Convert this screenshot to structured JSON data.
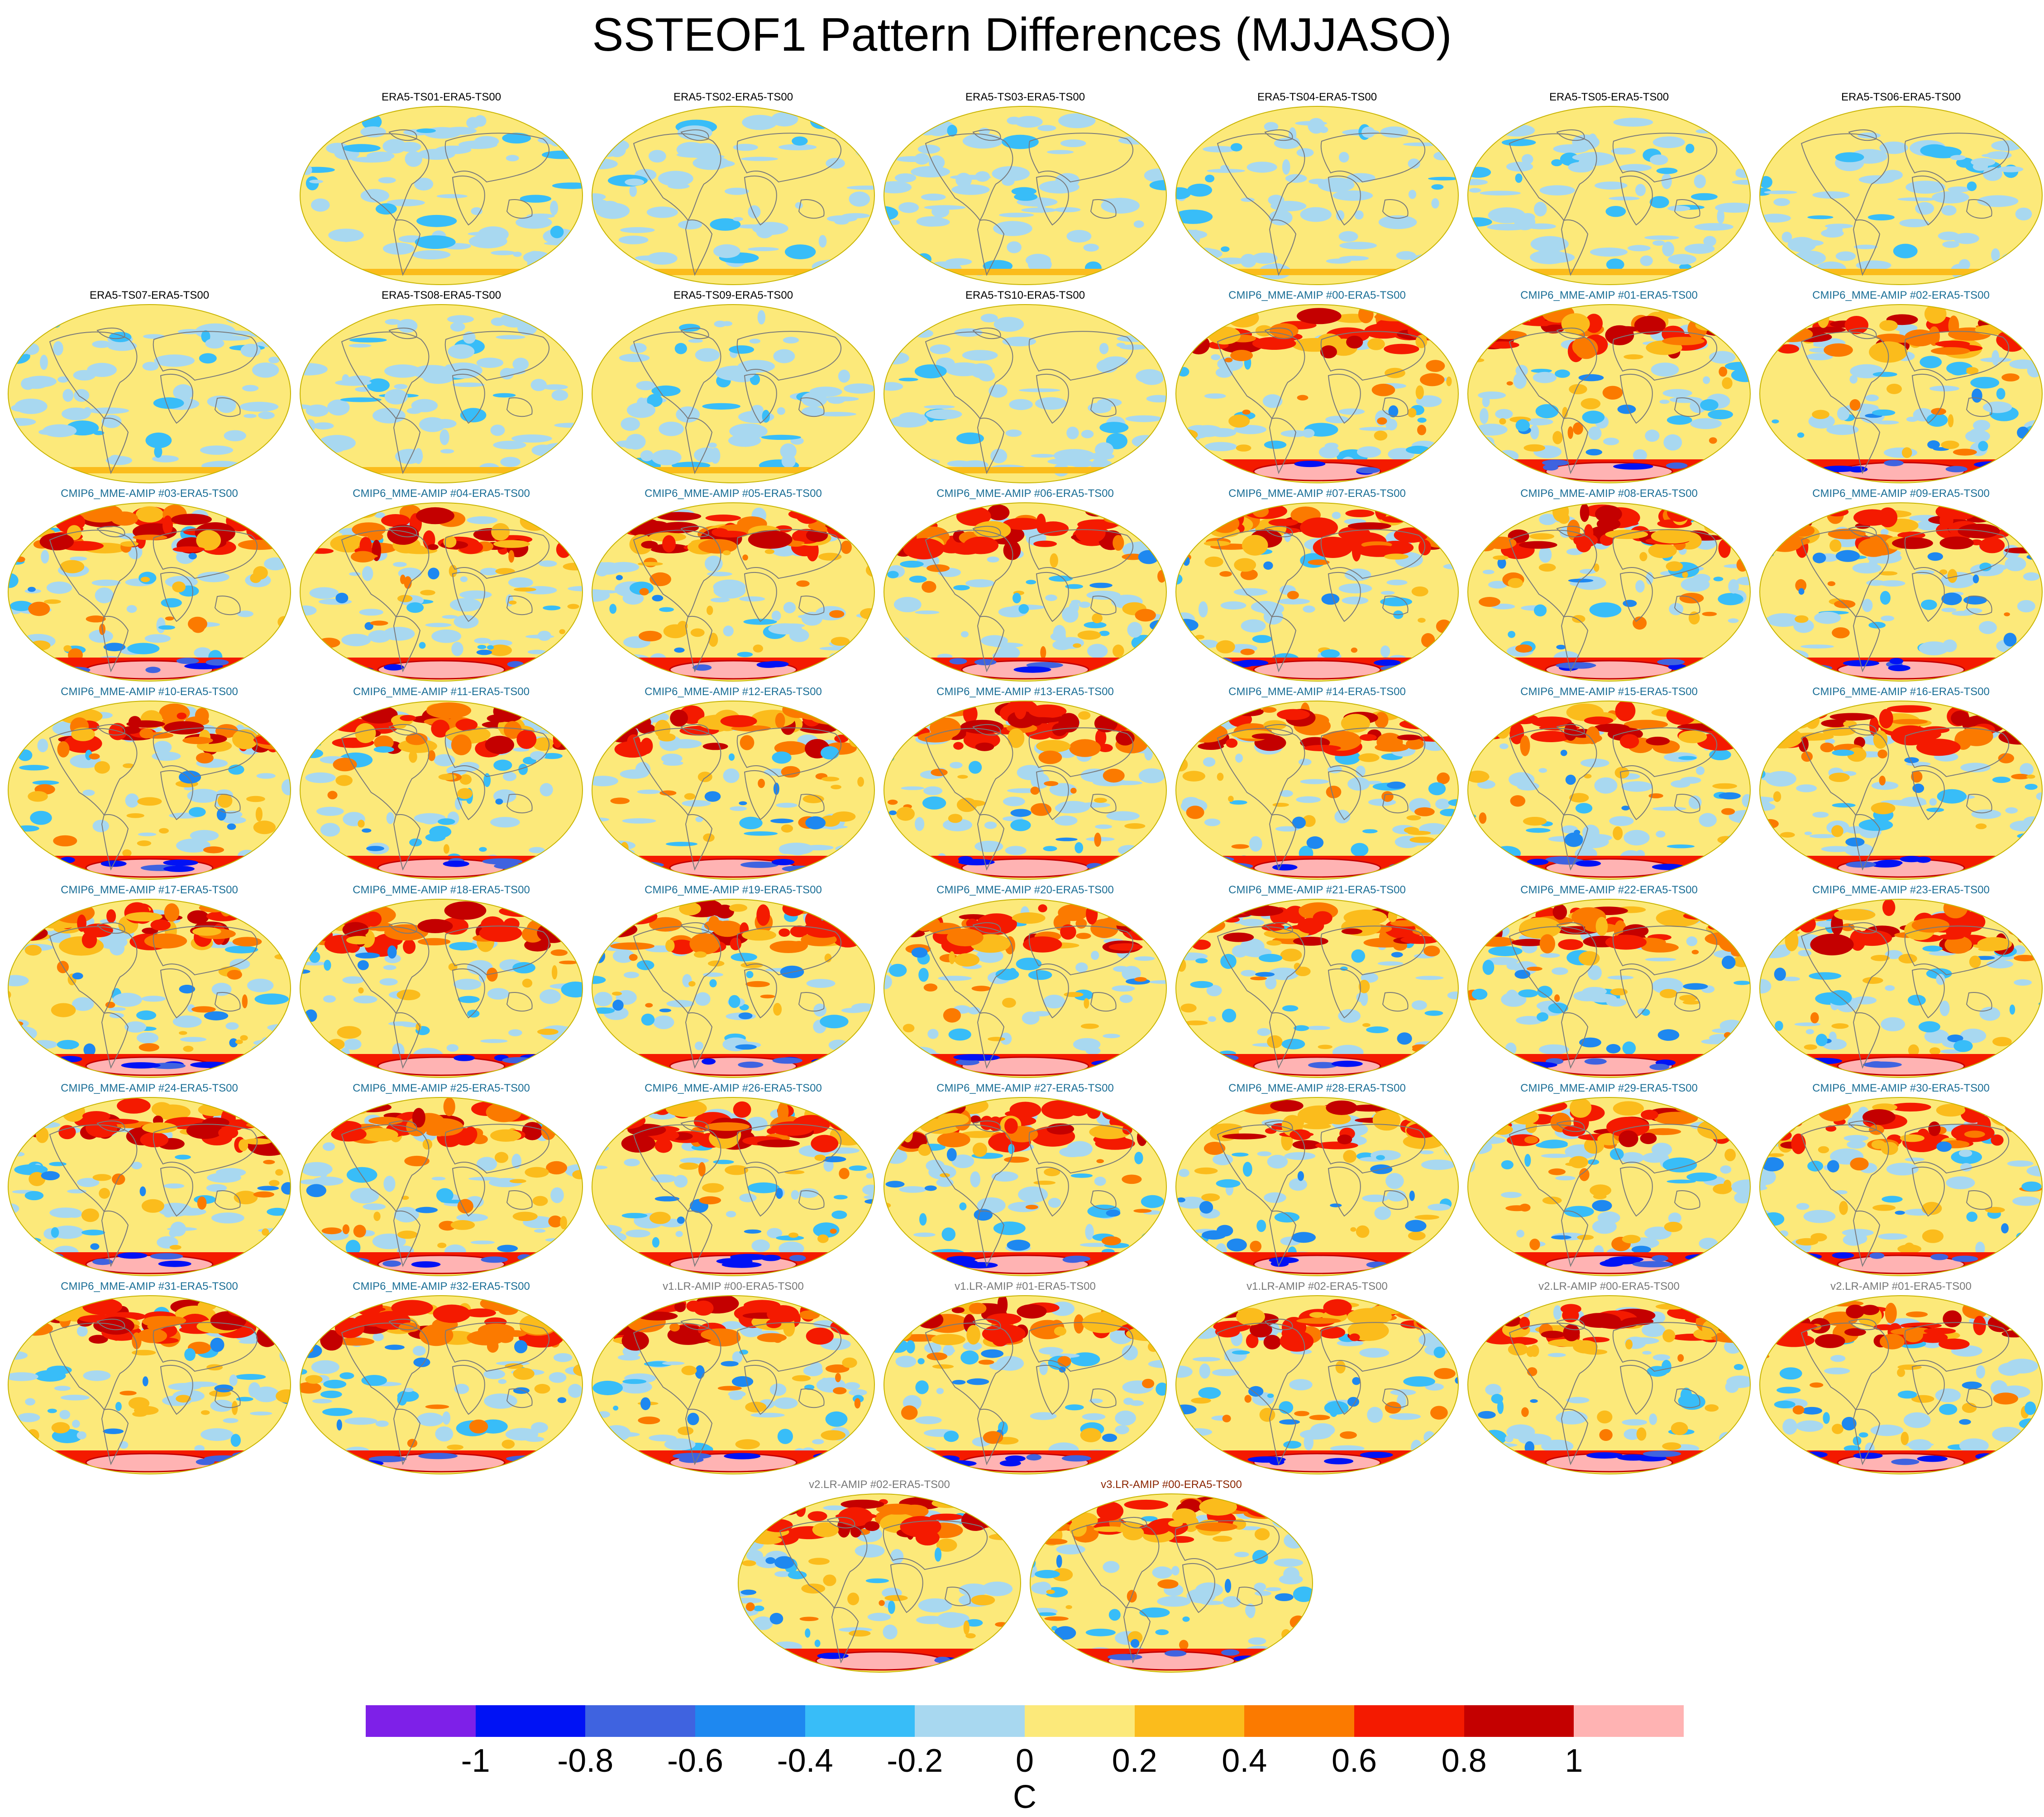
{
  "title": "SSTEOF1 Pattern Differences (MJJASO)",
  "palette": [
    "#7e20e8",
    "#0012f5",
    "#3f63e0",
    "#1e88f0",
    "#38bdf8",
    "#a8d8f0",
    "#fce97a",
    "#fbbc1c",
    "#fb7a00",
    "#f41a00",
    "#c40000",
    "#ffb3b3"
  ],
  "colorbar": {
    "tick_labels": [
      "-1",
      "-0.8",
      "-0.6",
      "-0.4",
      "-0.2",
      "0",
      "0.2",
      "0.4",
      "0.6",
      "0.8",
      "1"
    ],
    "unit": "C"
  },
  "panels": [
    {
      "title": "ERA5-TS01-ERA5-TS00",
      "title_color": "#000000"
    },
    {
      "title": "ERA5-TS02-ERA5-TS00",
      "title_color": "#000000"
    },
    {
      "title": "ERA5-TS03-ERA5-TS00",
      "title_color": "#000000"
    },
    {
      "title": "ERA5-TS04-ERA5-TS00",
      "title_color": "#000000"
    },
    {
      "title": "ERA5-TS05-ERA5-TS00",
      "title_color": "#000000"
    },
    {
      "title": "ERA5-TS06-ERA5-TS00",
      "title_color": "#000000"
    },
    {
      "title": "ERA5-TS07-ERA5-TS00",
      "title_color": "#000000"
    },
    {
      "title": "ERA5-TS08-ERA5-TS00",
      "title_color": "#000000"
    },
    {
      "title": "ERA5-TS09-ERA5-TS00",
      "title_color": "#000000"
    },
    {
      "title": "ERA5-TS10-ERA5-TS00",
      "title_color": "#000000"
    },
    {
      "title": "CMIP6_MME-AMIP  #00-ERA5-TS00",
      "title_color": "#1a6e96"
    },
    {
      "title": "CMIP6_MME-AMIP  #01-ERA5-TS00",
      "title_color": "#1a6e96"
    },
    {
      "title": "CMIP6_MME-AMIP  #02-ERA5-TS00",
      "title_color": "#1a6e96"
    },
    {
      "title": "CMIP6_MME-AMIP  #03-ERA5-TS00",
      "title_color": "#1a6e96"
    },
    {
      "title": "CMIP6_MME-AMIP  #04-ERA5-TS00",
      "title_color": "#1a6e96"
    },
    {
      "title": "CMIP6_MME-AMIP  #05-ERA5-TS00",
      "title_color": "#1a6e96"
    },
    {
      "title": "CMIP6_MME-AMIP  #06-ERA5-TS00",
      "title_color": "#1a6e96"
    },
    {
      "title": "CMIP6_MME-AMIP  #07-ERA5-TS00",
      "title_color": "#1a6e96"
    },
    {
      "title": "CMIP6_MME-AMIP  #08-ERA5-TS00",
      "title_color": "#1a6e96"
    },
    {
      "title": "CMIP6_MME-AMIP  #09-ERA5-TS00",
      "title_color": "#1a6e96"
    },
    {
      "title": "CMIP6_MME-AMIP  #10-ERA5-TS00",
      "title_color": "#1a6e96"
    },
    {
      "title": "CMIP6_MME-AMIP  #11-ERA5-TS00",
      "title_color": "#1a6e96"
    },
    {
      "title": "CMIP6_MME-AMIP  #12-ERA5-TS00",
      "title_color": "#1a6e96"
    },
    {
      "title": "CMIP6_MME-AMIP  #13-ERA5-TS00",
      "title_color": "#1a6e96"
    },
    {
      "title": "CMIP6_MME-AMIP  #14-ERA5-TS00",
      "title_color": "#1a6e96"
    },
    {
      "title": "CMIP6_MME-AMIP  #15-ERA5-TS00",
      "title_color": "#1a6e96"
    },
    {
      "title": "CMIP6_MME-AMIP  #16-ERA5-TS00",
      "title_color": "#1a6e96"
    },
    {
      "title": "CMIP6_MME-AMIP  #17-ERA5-TS00",
      "title_color": "#1a6e96"
    },
    {
      "title": "CMIP6_MME-AMIP  #18-ERA5-TS00",
      "title_color": "#1a6e96"
    },
    {
      "title": "CMIP6_MME-AMIP  #19-ERA5-TS00",
      "title_color": "#1a6e96"
    },
    {
      "title": "CMIP6_MME-AMIP  #20-ERA5-TS00",
      "title_color": "#1a6e96"
    },
    {
      "title": "CMIP6_MME-AMIP  #21-ERA5-TS00",
      "title_color": "#1a6e96"
    },
    {
      "title": "CMIP6_MME-AMIP  #22-ERA5-TS00",
      "title_color": "#1a6e96"
    },
    {
      "title": "CMIP6_MME-AMIP  #23-ERA5-TS00",
      "title_color": "#1a6e96"
    },
    {
      "title": "CMIP6_MME-AMIP  #24-ERA5-TS00",
      "title_color": "#1a6e96"
    },
    {
      "title": "CMIP6_MME-AMIP  #25-ERA5-TS00",
      "title_color": "#1a6e96"
    },
    {
      "title": "CMIP6_MME-AMIP  #26-ERA5-TS00",
      "title_color": "#1a6e96"
    },
    {
      "title": "CMIP6_MME-AMIP  #27-ERA5-TS00",
      "title_color": "#1a6e96"
    },
    {
      "title": "CMIP6_MME-AMIP  #28-ERA5-TS00",
      "title_color": "#1a6e96"
    },
    {
      "title": "CMIP6_MME-AMIP  #29-ERA5-TS00",
      "title_color": "#1a6e96"
    },
    {
      "title": "CMIP6_MME-AMIP  #30-ERA5-TS00",
      "title_color": "#1a6e96"
    },
    {
      "title": "CMIP6_MME-AMIP  #31-ERA5-TS00",
      "title_color": "#1a6e96"
    },
    {
      "title": "CMIP6_MME-AMIP  #32-ERA5-TS00",
      "title_color": "#1a6e96"
    },
    {
      "title": "v1.LR-AMIP  #00-ERA5-TS00",
      "title_color": "#777777"
    },
    {
      "title": "v1.LR-AMIP  #01-ERA5-TS00",
      "title_color": "#777777"
    },
    {
      "title": "v1.LR-AMIP  #02-ERA5-TS00",
      "title_color": "#777777"
    },
    {
      "title": "v2.LR-AMIP  #00-ERA5-TS00",
      "title_color": "#777777"
    },
    {
      "title": "v2.LR-AMIP  #01-ERA5-TS00",
      "title_color": "#777777"
    },
    {
      "title": "v2.LR-AMIP  #02-ERA5-TS00",
      "title_color": "#777777"
    },
    {
      "title": "v3.LR-AMIP  #00-ERA5-TS00",
      "title_color": "#8b2500"
    }
  ]
}
